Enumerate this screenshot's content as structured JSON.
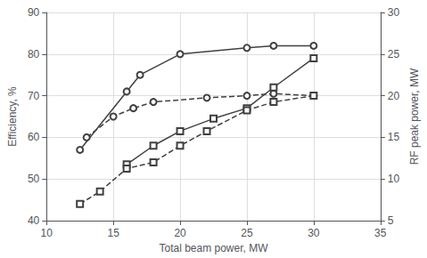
{
  "chart_data": {
    "type": "line",
    "xlabel": "Total beam power, MW",
    "ylabel": "Efficiency, %",
    "y2label": "RF peak power, MW",
    "xlim": [
      10,
      35
    ],
    "xticks": [
      10,
      15,
      20,
      25,
      30,
      35
    ],
    "ylim": [
      40,
      90
    ],
    "yticks": [
      40,
      50,
      60,
      70,
      80,
      90
    ],
    "y2lim": [
      5,
      30
    ],
    "y2ticks": [
      5,
      10,
      15,
      20,
      25,
      30
    ],
    "grid": true,
    "series": [
      {
        "x": [
          12.5,
          16,
          17,
          20,
          25,
          27,
          30
        ],
        "values": [
          57,
          71,
          75,
          80,
          81.5,
          82,
          82
        ],
        "color": "#404040",
        "marker": "circle",
        "line_style": "solid"
      },
      {
        "x": [
          13,
          15,
          16.5,
          18,
          22,
          25,
          27,
          30
        ],
        "values": [
          60,
          65,
          67,
          68.5,
          69.5,
          70,
          70.5,
          70
        ],
        "color": "#404040",
        "marker": "circle",
        "line_style": "dashed"
      },
      {
        "x": [
          16,
          18,
          20,
          22.5,
          25,
          27,
          30
        ],
        "values": [
          53.5,
          58,
          61.5,
          64.5,
          67,
          72,
          79
        ],
        "color": "#404040",
        "marker": "square",
        "line_style": "solid"
      },
      {
        "x": [
          12.5,
          14,
          16,
          18,
          20,
          22,
          25,
          27,
          30
        ],
        "values": [
          44,
          47,
          52.5,
          54,
          58,
          61.5,
          66.5,
          68.5,
          70
        ],
        "color": "#404040",
        "marker": "square",
        "line_style": "dashed"
      }
    ]
  }
}
